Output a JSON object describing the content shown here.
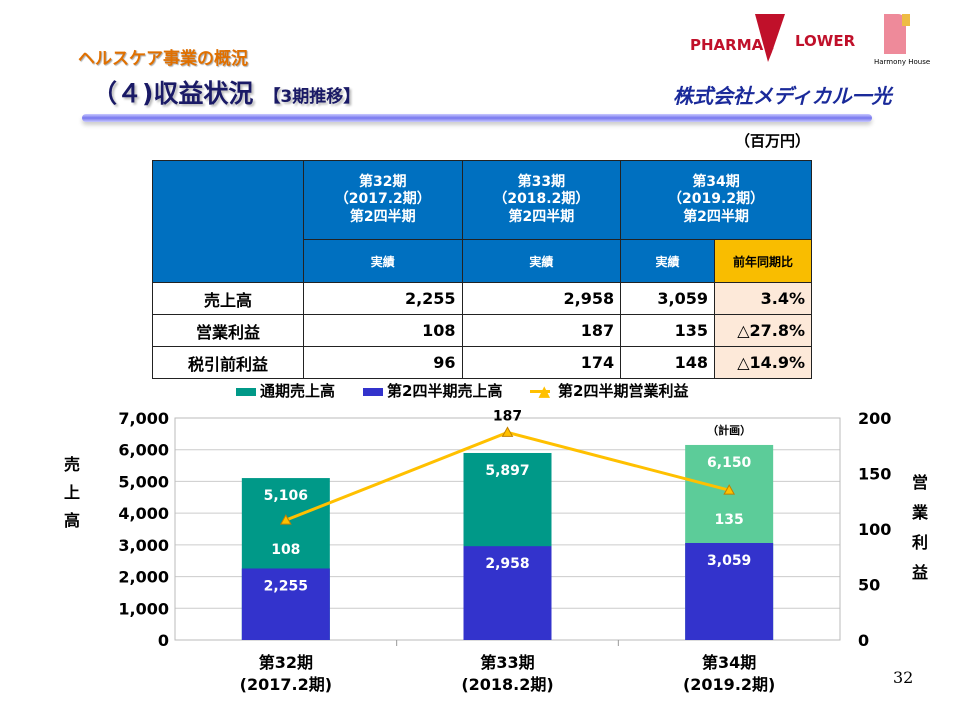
{
  "header": {
    "subtitle": "ヘルスケア事業の概況",
    "title": "（４)収益状況",
    "title_suffix": "【3期推移】",
    "unit": "（百万円）",
    "logos": {
      "pharmac": "PHARMAC",
      "flower": "LOWER",
      "harmony": "Harmony House",
      "company": "株式会社メディカル一光"
    }
  },
  "table": {
    "columns": [
      {
        "period": "第32期",
        "fy": "（2017.2期）",
        "q": "第2四半期",
        "sub": "実績"
      },
      {
        "period": "第33期",
        "fy": "（2018.2期）",
        "q": "第2四半期",
        "sub": "実績"
      },
      {
        "period": "第34期",
        "fy": "（2019.2期）",
        "q": "第2四半期",
        "sub": "実績",
        "yoy": "前年同期比"
      }
    ],
    "rows": [
      {
        "label": "売上高",
        "values": [
          "2,255",
          "2,958",
          "3,059"
        ],
        "yoy": "3.4%"
      },
      {
        "label": "営業利益",
        "values": [
          "108",
          "187",
          "135"
        ],
        "yoy": "△27.8%"
      },
      {
        "label": "税引前利益",
        "values": [
          "96",
          "174",
          "148"
        ],
        "yoy": "△14.9%"
      }
    ]
  },
  "chart_data": {
    "type": "bar",
    "categories": [
      "第32期\n(2017.2期)",
      "第33期\n(2018.2期)",
      "第34期\n(2019.2期)"
    ],
    "category_lines": [
      [
        "第32期",
        "(2017.2期)"
      ],
      [
        "第33期",
        "(2018.2期)"
      ],
      [
        "第34期",
        "(2019.2期)"
      ]
    ],
    "series": [
      {
        "name": "通期売上高",
        "type": "bar",
        "values": [
          5106,
          5897,
          6150
        ],
        "color": "#009988",
        "plan_color": "#5ccc99"
      },
      {
        "name": "第2四半期売上高",
        "type": "bar",
        "values": [
          2255,
          2958,
          3059
        ],
        "color": "#3333cc"
      },
      {
        "name": "第2四半期営業利益",
        "type": "line",
        "axis": "right",
        "values": [
          108,
          187,
          135
        ],
        "color": "#ffc000"
      }
    ],
    "annotation": "（計画）",
    "ylabel": "売上高",
    "ylabel_right": "営業利益",
    "ylim": [
      0,
      7000
    ],
    "yticks": [
      "0",
      "1,000",
      "2,000",
      "3,000",
      "4,000",
      "5,000",
      "6,000",
      "7,000"
    ],
    "ylim_right": [
      0,
      200
    ],
    "yticks_right": [
      "0",
      "50",
      "100",
      "150",
      "200"
    ],
    "value_labels": {
      "full": [
        "5,106",
        "5,897",
        "6,150"
      ],
      "q2": [
        "2,255",
        "2,958",
        "3,059"
      ],
      "op": [
        "108",
        "187",
        "135"
      ]
    },
    "legend": "top",
    "grid": true
  },
  "page_number": "32"
}
